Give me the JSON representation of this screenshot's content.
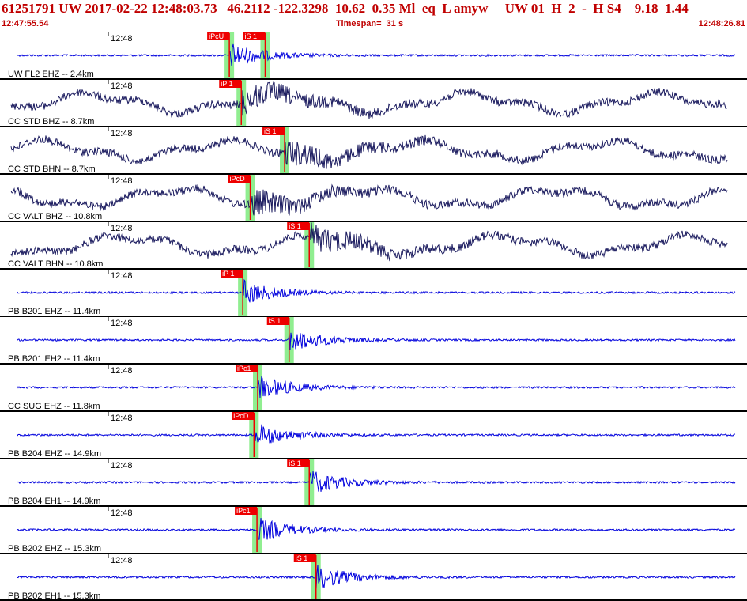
{
  "header": {
    "title": "61251791 UW 2017-02-22 12:48:03.73   46.2112 -122.3298  10.62  0.35 Ml  eq  L amyw     UW 01  H  2  -  H S4    9.18  1.44",
    "start_time": "12:47:55.54",
    "timespan": "Timespan=  31 s",
    "end_time": "12:48:26.81"
  },
  "colors": {
    "header_text": "#c00000",
    "trace_blue": "#0000dd",
    "trace_dark": "#1a1a5e",
    "pick_window": "#90ee90",
    "pick_flag": "#ee0000"
  },
  "channels": [
    {
      "label": "UW FL2 EHZ -- 2.4km",
      "tick_label": "12:48",
      "color": "#0000dd",
      "style": "hf",
      "picks": [
        {
          "label": "iPcU",
          "t": 0.307
        },
        {
          "label": "iS 1",
          "t": 0.355
        }
      ]
    },
    {
      "label": "CC STD BHZ -- 8.7km",
      "tick_label": "12:48",
      "color": "#1a1a5e",
      "style": "lf",
      "picks": [
        {
          "label": "iP 1",
          "t": 0.323
        }
      ]
    },
    {
      "label": "CC STD BHN -- 8.7km",
      "tick_label": "12:48",
      "color": "#1a1a5e",
      "style": "lf",
      "picks": [
        {
          "label": "iS 1",
          "t": 0.381
        }
      ]
    },
    {
      "label": "CC VALT BHZ -- 10.8km",
      "tick_label": "12:48",
      "color": "#1a1a5e",
      "style": "lf",
      "picks": [
        {
          "label": "iPcD",
          "t": 0.335
        }
      ]
    },
    {
      "label": "CC VALT BHN -- 10.8km",
      "tick_label": "12:48",
      "color": "#1a1a5e",
      "style": "lf",
      "picks": [
        {
          "label": "iS 1",
          "t": 0.414
        }
      ]
    },
    {
      "label": "PB B201 EHZ -- 11.4km",
      "tick_label": "12:48",
      "color": "#0000dd",
      "style": "hf",
      "picks": [
        {
          "label": "iP 1",
          "t": 0.325
        }
      ]
    },
    {
      "label": "PB B201 EH2 -- 11.4km",
      "tick_label": "12:48",
      "color": "#0000dd",
      "style": "hf",
      "picks": [
        {
          "label": "iS 1",
          "t": 0.387
        }
      ]
    },
    {
      "label": "CC SUG EHZ -- 11.8km",
      "tick_label": "12:48",
      "color": "#0000dd",
      "style": "hf",
      "picks": [
        {
          "label": "iPc1",
          "t": 0.345
        }
      ]
    },
    {
      "label": "PB B204 EHZ -- 14.9km",
      "tick_label": "12:48",
      "color": "#0000dd",
      "style": "hf",
      "picks": [
        {
          "label": "iPcD",
          "t": 0.34
        }
      ]
    },
    {
      "label": "PB B204 EH1 -- 14.9km",
      "tick_label": "12:48",
      "color": "#0000dd",
      "style": "hf",
      "picks": [
        {
          "label": "iS 1",
          "t": 0.414
        }
      ]
    },
    {
      "label": "PB B202 EHZ -- 15.3km",
      "tick_label": "12:48",
      "color": "#0000dd",
      "style": "hf",
      "picks": [
        {
          "label": "iPc1",
          "t": 0.344
        }
      ]
    },
    {
      "label": "PB B202 EH1 -- 15.3km",
      "tick_label": "12:48",
      "color": "#0000dd",
      "style": "hf",
      "picks": [
        {
          "label": "iS 1",
          "t": 0.423
        }
      ]
    }
  ]
}
